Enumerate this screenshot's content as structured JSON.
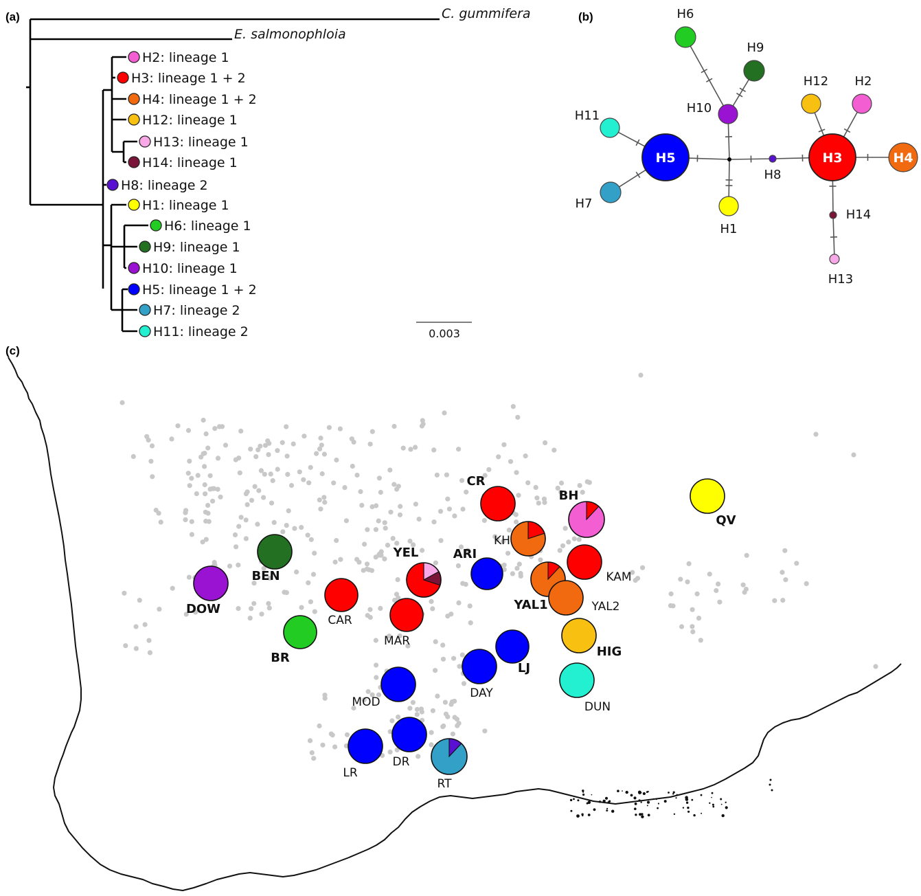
{
  "panels": {
    "a": "(a)",
    "b": "(b)",
    "c": "(c)"
  },
  "colors": {
    "H1": "#ffff00",
    "H2": "#f35fd2",
    "H3": "#ff0000",
    "H4": "#f26a10",
    "H5": "#0000ff",
    "H6": "#22cc22",
    "H7": "#33a0c8",
    "H8": "#5a10d2",
    "H9": "#237023",
    "H10": "#9a12d2",
    "H11": "#22f0d0",
    "H12": "#f8c010",
    "H13": "#f8a8e6",
    "H14": "#7a1438"
  },
  "tree": {
    "outgroups": [
      "C. gummifera",
      "E. salmonophloia"
    ],
    "tips": [
      {
        "hap": "H2",
        "label": "H2: lineage 1"
      },
      {
        "hap": "H3",
        "label": "H3: lineage 1 + 2"
      },
      {
        "hap": "H4",
        "label": "H4: lineage 1 + 2"
      },
      {
        "hap": "H12",
        "label": "H12: lineage 1"
      },
      {
        "hap": "H13",
        "label": "H13: lineage 1"
      },
      {
        "hap": "H14",
        "label": "H14: lineage 1"
      },
      {
        "hap": "H8",
        "label": "H8: lineage 2"
      },
      {
        "hap": "H1",
        "label": "H1: lineage 1"
      },
      {
        "hap": "H6",
        "label": "H6: lineage 1"
      },
      {
        "hap": "H9",
        "label": "H9: lineage 1"
      },
      {
        "hap": "H10",
        "label": "H10: lineage 1"
      },
      {
        "hap": "H5",
        "label": "H5: lineage 1 + 2"
      },
      {
        "hap": "H7",
        "label": "H7: lineage 2"
      },
      {
        "hap": "H11",
        "label": "H11: lineage 2"
      }
    ],
    "scale_bar": "0.003"
  },
  "network": {
    "nodes": [
      "H1",
      "H2",
      "H3",
      "H4",
      "H5",
      "H6",
      "H7",
      "H8",
      "H9",
      "H10",
      "H11",
      "H12",
      "H13",
      "H14"
    ],
    "edges": [
      {
        "from": "H5",
        "to": "H11",
        "mutations": 1
      },
      {
        "from": "H5",
        "to": "H7",
        "mutations": 1
      },
      {
        "from": "H5",
        "to": "median",
        "mutations": 1
      },
      {
        "from": "median",
        "to": "H10",
        "mutations": 1
      },
      {
        "from": "median",
        "to": "H1",
        "mutations": 2
      },
      {
        "from": "median",
        "to": "H8",
        "mutations": 1
      },
      {
        "from": "H10",
        "to": "H6",
        "mutations": 2
      },
      {
        "from": "H10",
        "to": "H9",
        "mutations": 2
      },
      {
        "from": "H8",
        "to": "H3",
        "mutations": 1
      },
      {
        "from": "H3",
        "to": "H4",
        "mutations": 1
      },
      {
        "from": "H3",
        "to": "H12",
        "mutations": 1
      },
      {
        "from": "H3",
        "to": "H2",
        "mutations": 1
      },
      {
        "from": "H3",
        "to": "H14",
        "mutations": 1
      },
      {
        "from": "H14",
        "to": "H13",
        "mutations": 1
      }
    ]
  },
  "map": {
    "sites": [
      {
        "code": "DOW",
        "bold": true,
        "haplotypes": [
          {
            "hap": "H10",
            "frac": 1
          }
        ]
      },
      {
        "code": "BEN",
        "bold": true,
        "haplotypes": [
          {
            "hap": "H9",
            "frac": 1
          }
        ]
      },
      {
        "code": "BR",
        "bold": true,
        "haplotypes": [
          {
            "hap": "H6",
            "frac": 1
          }
        ]
      },
      {
        "code": "CAR",
        "bold": false,
        "haplotypes": [
          {
            "hap": "H3",
            "frac": 1
          }
        ]
      },
      {
        "code": "MAR",
        "bold": false,
        "haplotypes": [
          {
            "hap": "H3",
            "frac": 1
          }
        ]
      },
      {
        "code": "YEL",
        "bold": true,
        "haplotypes": [
          {
            "hap": "H13",
            "frac": 0.17
          },
          {
            "hap": "H14",
            "frac": 0.13
          },
          {
            "hap": "H3",
            "frac": 0.7
          }
        ]
      },
      {
        "code": "ARI",
        "bold": true,
        "haplotypes": [
          {
            "hap": "H5",
            "frac": 1
          }
        ]
      },
      {
        "code": "CR",
        "bold": true,
        "haplotypes": [
          {
            "hap": "H3",
            "frac": 1
          }
        ]
      },
      {
        "code": "BH",
        "bold": true,
        "haplotypes": [
          {
            "hap": "H3",
            "frac": 0.12
          },
          {
            "hap": "H2",
            "frac": 0.88
          }
        ]
      },
      {
        "code": "KH",
        "bold": false,
        "haplotypes": [
          {
            "hap": "H3",
            "frac": 0.2
          },
          {
            "hap": "H4",
            "frac": 0.8
          }
        ]
      },
      {
        "code": "KAM",
        "bold": false,
        "haplotypes": [
          {
            "hap": "H3",
            "frac": 1
          }
        ]
      },
      {
        "code": "YAL1",
        "bold": true,
        "haplotypes": [
          {
            "hap": "H3",
            "frac": 0.12
          },
          {
            "hap": "H4",
            "frac": 0.88
          }
        ]
      },
      {
        "code": "YAL2",
        "bold": false,
        "haplotypes": [
          {
            "hap": "H4",
            "frac": 1
          }
        ]
      },
      {
        "code": "HIG",
        "bold": true,
        "haplotypes": [
          {
            "hap": "H12",
            "frac": 1
          }
        ]
      },
      {
        "code": "DUN",
        "bold": false,
        "haplotypes": [
          {
            "hap": "H11",
            "frac": 1
          }
        ]
      },
      {
        "code": "QV",
        "bold": true,
        "haplotypes": [
          {
            "hap": "H1",
            "frac": 1
          }
        ]
      },
      {
        "code": "LJ",
        "bold": true,
        "haplotypes": [
          {
            "hap": "H5",
            "frac": 1
          }
        ]
      },
      {
        "code": "DAY",
        "bold": false,
        "haplotypes": [
          {
            "hap": "H5",
            "frac": 1
          }
        ]
      },
      {
        "code": "MOD",
        "bold": false,
        "haplotypes": [
          {
            "hap": "H5",
            "frac": 1
          }
        ]
      },
      {
        "code": "DR",
        "bold": false,
        "haplotypes": [
          {
            "hap": "H5",
            "frac": 1
          }
        ]
      },
      {
        "code": "LR",
        "bold": false,
        "haplotypes": [
          {
            "hap": "H5",
            "frac": 1
          }
        ]
      },
      {
        "code": "RT",
        "bold": false,
        "haplotypes": [
          {
            "hap": "H8",
            "frac": 0.12
          },
          {
            "hap": "H7",
            "frac": 0.88
          }
        ]
      }
    ]
  }
}
